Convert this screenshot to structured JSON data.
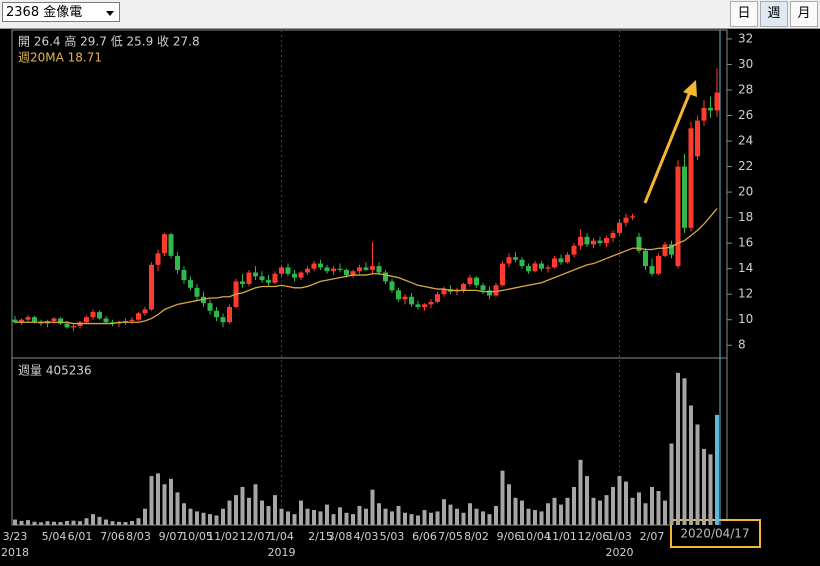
{
  "toolbar": {
    "symbol": "2368 金像電",
    "buttons": [
      "日",
      "週",
      "月"
    ]
  },
  "chart_data": {
    "type": "candlestick",
    "ohlc_label": "開 26.4 高 29.7 低 25.9 收 27.8",
    "ma_label": "週20MA 18.71",
    "volume_label": "週量 405236",
    "selected_date": "2020/04/17",
    "up_color": "#ff3b30",
    "down_color": "#2fb84c",
    "ma_color": "#d6a943",
    "volume_color": "#a6a6a6",
    "cursor_color": "#5fb8d6",
    "ylim": [
      7,
      32.7
    ],
    "yticks": [
      8,
      10,
      12,
      14,
      16,
      18,
      20,
      22,
      24,
      26,
      28,
      30,
      32
    ],
    "volume_ylim": [
      0,
      600000
    ],
    "xticks": [
      {
        "value": 0,
        "label": "3/23"
      },
      {
        "value": 6,
        "label": "5/04"
      },
      {
        "value": 10,
        "label": "6/01"
      },
      {
        "value": 15,
        "label": "7/06"
      },
      {
        "value": 19,
        "label": "8/03"
      },
      {
        "value": 24,
        "label": "9/07"
      },
      {
        "value": 28,
        "label": "10/05"
      },
      {
        "value": 32,
        "label": "11/02"
      },
      {
        "value": 37,
        "label": "12/07"
      },
      {
        "value": 41,
        "label": "1/04"
      },
      {
        "value": 47,
        "label": "2/15"
      },
      {
        "value": 50,
        "label": "3/08"
      },
      {
        "value": 54,
        "label": "4/03"
      },
      {
        "value": 58,
        "label": "5/03"
      },
      {
        "value": 63,
        "label": "6/06"
      },
      {
        "value": 67,
        "label": "7/05"
      },
      {
        "value": 71,
        "label": "8/02"
      },
      {
        "value": 76,
        "label": "9/06"
      },
      {
        "value": 80,
        "label": "10/04"
      },
      {
        "value": 84,
        "label": "11/01"
      },
      {
        "value": 89,
        "label": "12/06"
      },
      {
        "value": 93,
        "label": "1/03"
      },
      {
        "value": 98,
        "label": "2/07"
      }
    ],
    "year_ticks": [
      {
        "value": 0,
        "label": "2018"
      },
      {
        "value": 41,
        "label": "2019"
      },
      {
        "value": 93,
        "label": "2020"
      }
    ],
    "ohlc": [
      [
        10.0,
        10.3,
        9.7,
        9.8
      ],
      [
        9.8,
        10.1,
        9.6,
        10.0
      ],
      [
        10.0,
        10.4,
        9.8,
        10.2
      ],
      [
        10.2,
        10.3,
        9.7,
        9.8
      ],
      [
        9.8,
        10.0,
        9.5,
        9.7
      ],
      [
        9.7,
        10.0,
        9.4,
        9.9
      ],
      [
        9.9,
        10.2,
        9.7,
        10.1
      ],
      [
        10.1,
        10.2,
        9.6,
        9.7
      ],
      [
        9.7,
        9.9,
        9.3,
        9.4
      ],
      [
        9.4,
        9.7,
        9.1,
        9.5
      ],
      [
        9.5,
        9.9,
        9.3,
        9.8
      ],
      [
        9.8,
        10.3,
        9.7,
        10.2
      ],
      [
        10.2,
        10.8,
        10.0,
        10.6
      ],
      [
        10.6,
        10.7,
        10.0,
        10.1
      ],
      [
        10.1,
        10.3,
        9.7,
        9.8
      ],
      [
        9.8,
        10.0,
        9.5,
        9.7
      ],
      [
        9.7,
        9.9,
        9.4,
        9.8
      ],
      [
        9.8,
        10.1,
        9.6,
        9.9
      ],
      [
        9.9,
        10.2,
        9.7,
        10.0
      ],
      [
        10.0,
        10.6,
        9.9,
        10.5
      ],
      [
        10.5,
        11.0,
        10.3,
        10.8
      ],
      [
        10.8,
        14.5,
        10.7,
        14.3
      ],
      [
        14.3,
        15.5,
        13.8,
        15.2
      ],
      [
        15.2,
        16.8,
        15.0,
        16.7
      ],
      [
        16.7,
        16.8,
        14.8,
        15.0
      ],
      [
        15.0,
        15.3,
        13.6,
        13.9
      ],
      [
        13.9,
        14.2,
        12.8,
        13.1
      ],
      [
        13.1,
        13.4,
        12.3,
        12.5
      ],
      [
        12.5,
        12.8,
        11.5,
        11.8
      ],
      [
        11.8,
        12.2,
        11.0,
        11.3
      ],
      [
        11.3,
        11.6,
        10.4,
        10.7
      ],
      [
        10.7,
        11.0,
        9.9,
        10.2
      ],
      [
        10.2,
        10.5,
        9.4,
        9.8
      ],
      [
        9.8,
        11.2,
        9.7,
        11.0
      ],
      [
        11.0,
        13.2,
        10.9,
        13.0
      ],
      [
        13.0,
        13.6,
        12.5,
        12.8
      ],
      [
        12.8,
        13.9,
        12.6,
        13.7
      ],
      [
        13.7,
        14.2,
        13.1,
        13.4
      ],
      [
        13.4,
        13.8,
        12.9,
        13.1
      ],
      [
        13.1,
        13.5,
        12.6,
        12.9
      ],
      [
        12.9,
        13.8,
        12.8,
        13.6
      ],
      [
        13.6,
        14.3,
        13.3,
        14.1
      ],
      [
        14.1,
        14.4,
        13.4,
        13.6
      ],
      [
        13.6,
        13.9,
        13.0,
        13.3
      ],
      [
        13.3,
        13.8,
        13.1,
        13.7
      ],
      [
        13.7,
        14.2,
        13.5,
        14.0
      ],
      [
        14.0,
        14.6,
        13.8,
        14.4
      ],
      [
        14.4,
        14.7,
        13.9,
        14.1
      ],
      [
        14.1,
        14.3,
        13.6,
        13.8
      ],
      [
        13.8,
        14.2,
        13.5,
        14.0
      ],
      [
        14.0,
        14.4,
        13.7,
        13.9
      ],
      [
        13.9,
        14.0,
        13.3,
        13.5
      ],
      [
        13.5,
        13.9,
        13.3,
        13.8
      ],
      [
        13.8,
        14.3,
        13.6,
        14.1
      ],
      [
        14.1,
        14.5,
        13.8,
        13.9
      ],
      [
        13.9,
        16.1,
        13.6,
        14.2
      ],
      [
        14.2,
        14.5,
        13.5,
        13.7
      ],
      [
        13.7,
        13.9,
        12.8,
        13.0
      ],
      [
        13.0,
        13.2,
        12.1,
        12.3
      ],
      [
        12.3,
        12.5,
        11.4,
        11.6
      ],
      [
        11.6,
        12.0,
        11.2,
        11.8
      ],
      [
        11.8,
        12.1,
        11.0,
        11.2
      ],
      [
        11.2,
        11.5,
        10.8,
        11.0
      ],
      [
        11.0,
        11.3,
        10.7,
        11.2
      ],
      [
        11.2,
        11.6,
        10.9,
        11.4
      ],
      [
        11.4,
        12.2,
        11.3,
        12.0
      ],
      [
        12.0,
        12.6,
        11.8,
        12.4
      ],
      [
        12.4,
        12.7,
        12.0,
        12.2
      ],
      [
        12.2,
        12.5,
        11.9,
        12.3
      ],
      [
        12.3,
        12.9,
        12.1,
        12.8
      ],
      [
        12.8,
        13.5,
        12.6,
        13.3
      ],
      [
        13.3,
        13.4,
        12.5,
        12.7
      ],
      [
        12.7,
        12.9,
        12.0,
        12.3
      ],
      [
        12.3,
        12.6,
        11.6,
        11.9
      ],
      [
        11.9,
        12.9,
        11.8,
        12.7
      ],
      [
        12.7,
        14.6,
        12.6,
        14.4
      ],
      [
        14.4,
        15.2,
        14.1,
        14.9
      ],
      [
        14.9,
        15.3,
        14.5,
        14.7
      ],
      [
        14.7,
        14.9,
        14.0,
        14.2
      ],
      [
        14.2,
        14.4,
        13.6,
        13.8
      ],
      [
        13.8,
        14.6,
        13.7,
        14.4
      ],
      [
        14.4,
        14.6,
        13.8,
        14.0
      ],
      [
        14.0,
        14.3,
        13.7,
        14.1
      ],
      [
        14.1,
        15.0,
        14.0,
        14.8
      ],
      [
        14.8,
        15.1,
        14.3,
        14.5
      ],
      [
        14.5,
        15.3,
        14.4,
        15.1
      ],
      [
        15.1,
        16.0,
        14.9,
        15.8
      ],
      [
        15.8,
        17.1,
        15.5,
        16.5
      ],
      [
        16.5,
        16.8,
        15.7,
        15.9
      ],
      [
        15.9,
        16.4,
        15.6,
        16.2
      ],
      [
        16.2,
        16.5,
        15.8,
        16.0
      ],
      [
        16.0,
        16.6,
        15.7,
        16.4
      ],
      [
        16.4,
        17.0,
        16.1,
        16.8
      ],
      [
        16.8,
        17.9,
        16.6,
        17.6
      ],
      [
        17.6,
        18.3,
        17.3,
        18.0
      ],
      [
        18.0,
        18.3,
        17.8,
        18.1
      ],
      [
        16.5,
        16.8,
        15.2,
        15.4
      ],
      [
        15.4,
        15.6,
        13.9,
        14.2
      ],
      [
        14.2,
        14.8,
        13.4,
        13.6
      ],
      [
        13.6,
        15.2,
        13.5,
        15.0
      ],
      [
        15.0,
        16.1,
        14.9,
        15.9
      ],
      [
        15.9,
        16.2,
        14.8,
        15.1
      ],
      [
        14.2,
        22.5,
        14.0,
        22.0
      ],
      [
        22.0,
        23.0,
        16.8,
        17.2
      ],
      [
        17.2,
        25.5,
        16.9,
        25.0
      ],
      [
        22.8,
        26.0,
        22.5,
        25.6
      ],
      [
        25.6,
        27.2,
        25.2,
        26.6
      ],
      [
        26.6,
        27.5,
        25.8,
        26.4
      ],
      [
        26.4,
        29.7,
        25.9,
        27.8
      ]
    ],
    "ma": [
      9.8,
      9.8,
      9.8,
      9.8,
      9.8,
      9.8,
      9.8,
      9.8,
      9.8,
      9.7,
      9.7,
      9.7,
      9.7,
      9.7,
      9.7,
      9.7,
      9.8,
      9.8,
      9.8,
      9.8,
      9.9,
      10.1,
      10.4,
      10.8,
      11.0,
      11.2,
      11.3,
      11.4,
      11.5,
      11.6,
      11.7,
      11.7,
      11.8,
      11.8,
      12.0,
      12.1,
      12.3,
      12.5,
      12.6,
      12.6,
      12.6,
      12.7,
      12.6,
      12.5,
      12.5,
      12.6,
      12.8,
      13.0,
      13.1,
      13.2,
      13.3,
      13.4,
      13.5,
      13.5,
      13.5,
      13.6,
      13.6,
      13.5,
      13.4,
      13.3,
      13.1,
      12.9,
      12.7,
      12.6,
      12.5,
      12.4,
      12.4,
      12.3,
      12.3,
      12.3,
      12.3,
      12.3,
      12.2,
      12.2,
      12.2,
      12.3,
      12.4,
      12.5,
      12.6,
      12.7,
      12.8,
      12.9,
      13.1,
      13.3,
      13.5,
      13.7,
      13.9,
      14.1,
      14.3,
      14.4,
      14.6,
      14.8,
      15.0,
      15.2,
      15.4,
      15.6,
      15.6,
      15.5,
      15.5,
      15.6,
      15.6,
      15.7,
      16.0,
      16.2,
      16.6,
      17.0,
      17.5,
      18.1,
      18.71
    ],
    "volume": [
      20000,
      15000,
      18000,
      12000,
      10000,
      14000,
      12000,
      11000,
      15000,
      16000,
      14000,
      25000,
      40000,
      30000,
      20000,
      14000,
      12000,
      11000,
      15000,
      25000,
      60000,
      180000,
      190000,
      150000,
      170000,
      120000,
      80000,
      60000,
      50000,
      45000,
      40000,
      35000,
      60000,
      90000,
      110000,
      140000,
      100000,
      150000,
      90000,
      70000,
      110000,
      60000,
      50000,
      40000,
      90000,
      60000,
      55000,
      50000,
      75000,
      40000,
      65000,
      45000,
      40000,
      70000,
      60000,
      130000,
      80000,
      60000,
      50000,
      70000,
      45000,
      40000,
      35000,
      55000,
      45000,
      50000,
      95000,
      75000,
      60000,
      45000,
      80000,
      60000,
      50000,
      40000,
      70000,
      200000,
      150000,
      100000,
      90000,
      60000,
      55000,
      50000,
      80000,
      100000,
      75000,
      100000,
      140000,
      240000,
      180000,
      100000,
      90000,
      110000,
      140000,
      180000,
      160000,
      100000,
      120000,
      80000,
      140000,
      125000,
      90000,
      300000,
      560000,
      540000,
      440000,
      370000,
      280000,
      260000,
      405236
    ]
  }
}
